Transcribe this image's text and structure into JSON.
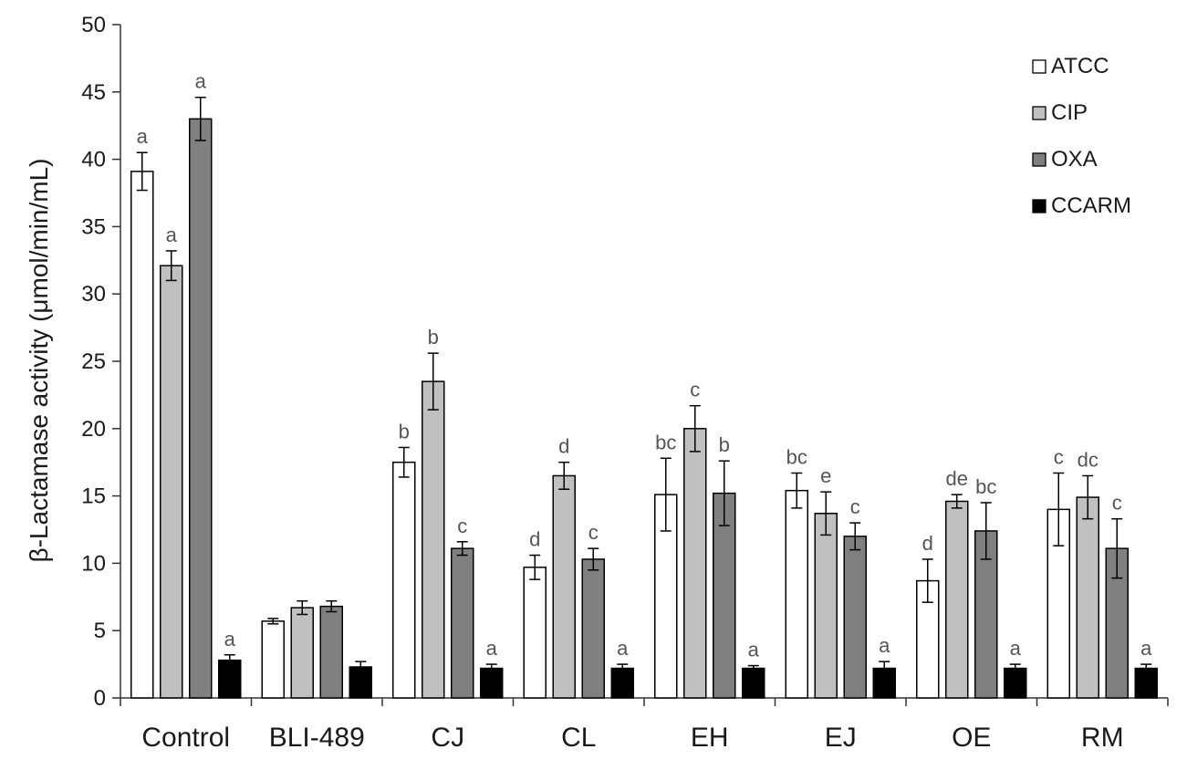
{
  "chart_data": {
    "type": "bar",
    "ylabel": "β-Lactamase activity (μmol/min/mL)",
    "xlabel": "",
    "ylim": [
      0,
      50
    ],
    "yticks": [
      0,
      5,
      10,
      15,
      20,
      25,
      30,
      35,
      40,
      45,
      50
    ],
    "grid": false,
    "legend_position": "top-right",
    "categories": [
      "Control",
      "BLI-489",
      "CJ",
      "CL",
      "EH",
      "EJ",
      "OE",
      "RM"
    ],
    "series": [
      {
        "name": "ATCC",
        "color": "#ffffff",
        "values": [
          39.1,
          5.7,
          17.5,
          9.7,
          15.1,
          15.4,
          8.7,
          14.0
        ],
        "errors": [
          1.4,
          0.2,
          1.1,
          0.9,
          2.7,
          1.3,
          1.6,
          2.7
        ],
        "labels": [
          "a",
          "",
          "b",
          "d",
          "bc",
          "bc",
          "d",
          "c"
        ]
      },
      {
        "name": "CIP",
        "color": "#c0c0c0",
        "values": [
          32.1,
          6.7,
          23.5,
          16.5,
          20.0,
          13.7,
          14.6,
          14.9
        ],
        "errors": [
          1.1,
          0.5,
          2.1,
          1.0,
          1.7,
          1.6,
          0.5,
          1.6
        ],
        "labels": [
          "a",
          "",
          "b",
          "d",
          "c",
          "e",
          "de",
          "dc"
        ]
      },
      {
        "name": "OXA",
        "color": "#808080",
        "values": [
          43.0,
          6.8,
          11.1,
          10.3,
          15.2,
          12.0,
          12.4,
          11.1
        ],
        "errors": [
          1.6,
          0.4,
          0.5,
          0.8,
          2.4,
          1.0,
          2.1,
          2.2
        ],
        "labels": [
          "a",
          "",
          "c",
          "c",
          "b",
          "c",
          "bc",
          "c"
        ]
      },
      {
        "name": "CCARM",
        "color": "#000000",
        "values": [
          2.8,
          2.3,
          2.2,
          2.2,
          2.2,
          2.2,
          2.2,
          2.2
        ],
        "errors": [
          0.4,
          0.4,
          0.3,
          0.3,
          0.2,
          0.5,
          0.3,
          0.3
        ],
        "labels": [
          "a",
          "",
          "a",
          "a",
          "a",
          "a",
          "a",
          "a"
        ]
      }
    ]
  }
}
